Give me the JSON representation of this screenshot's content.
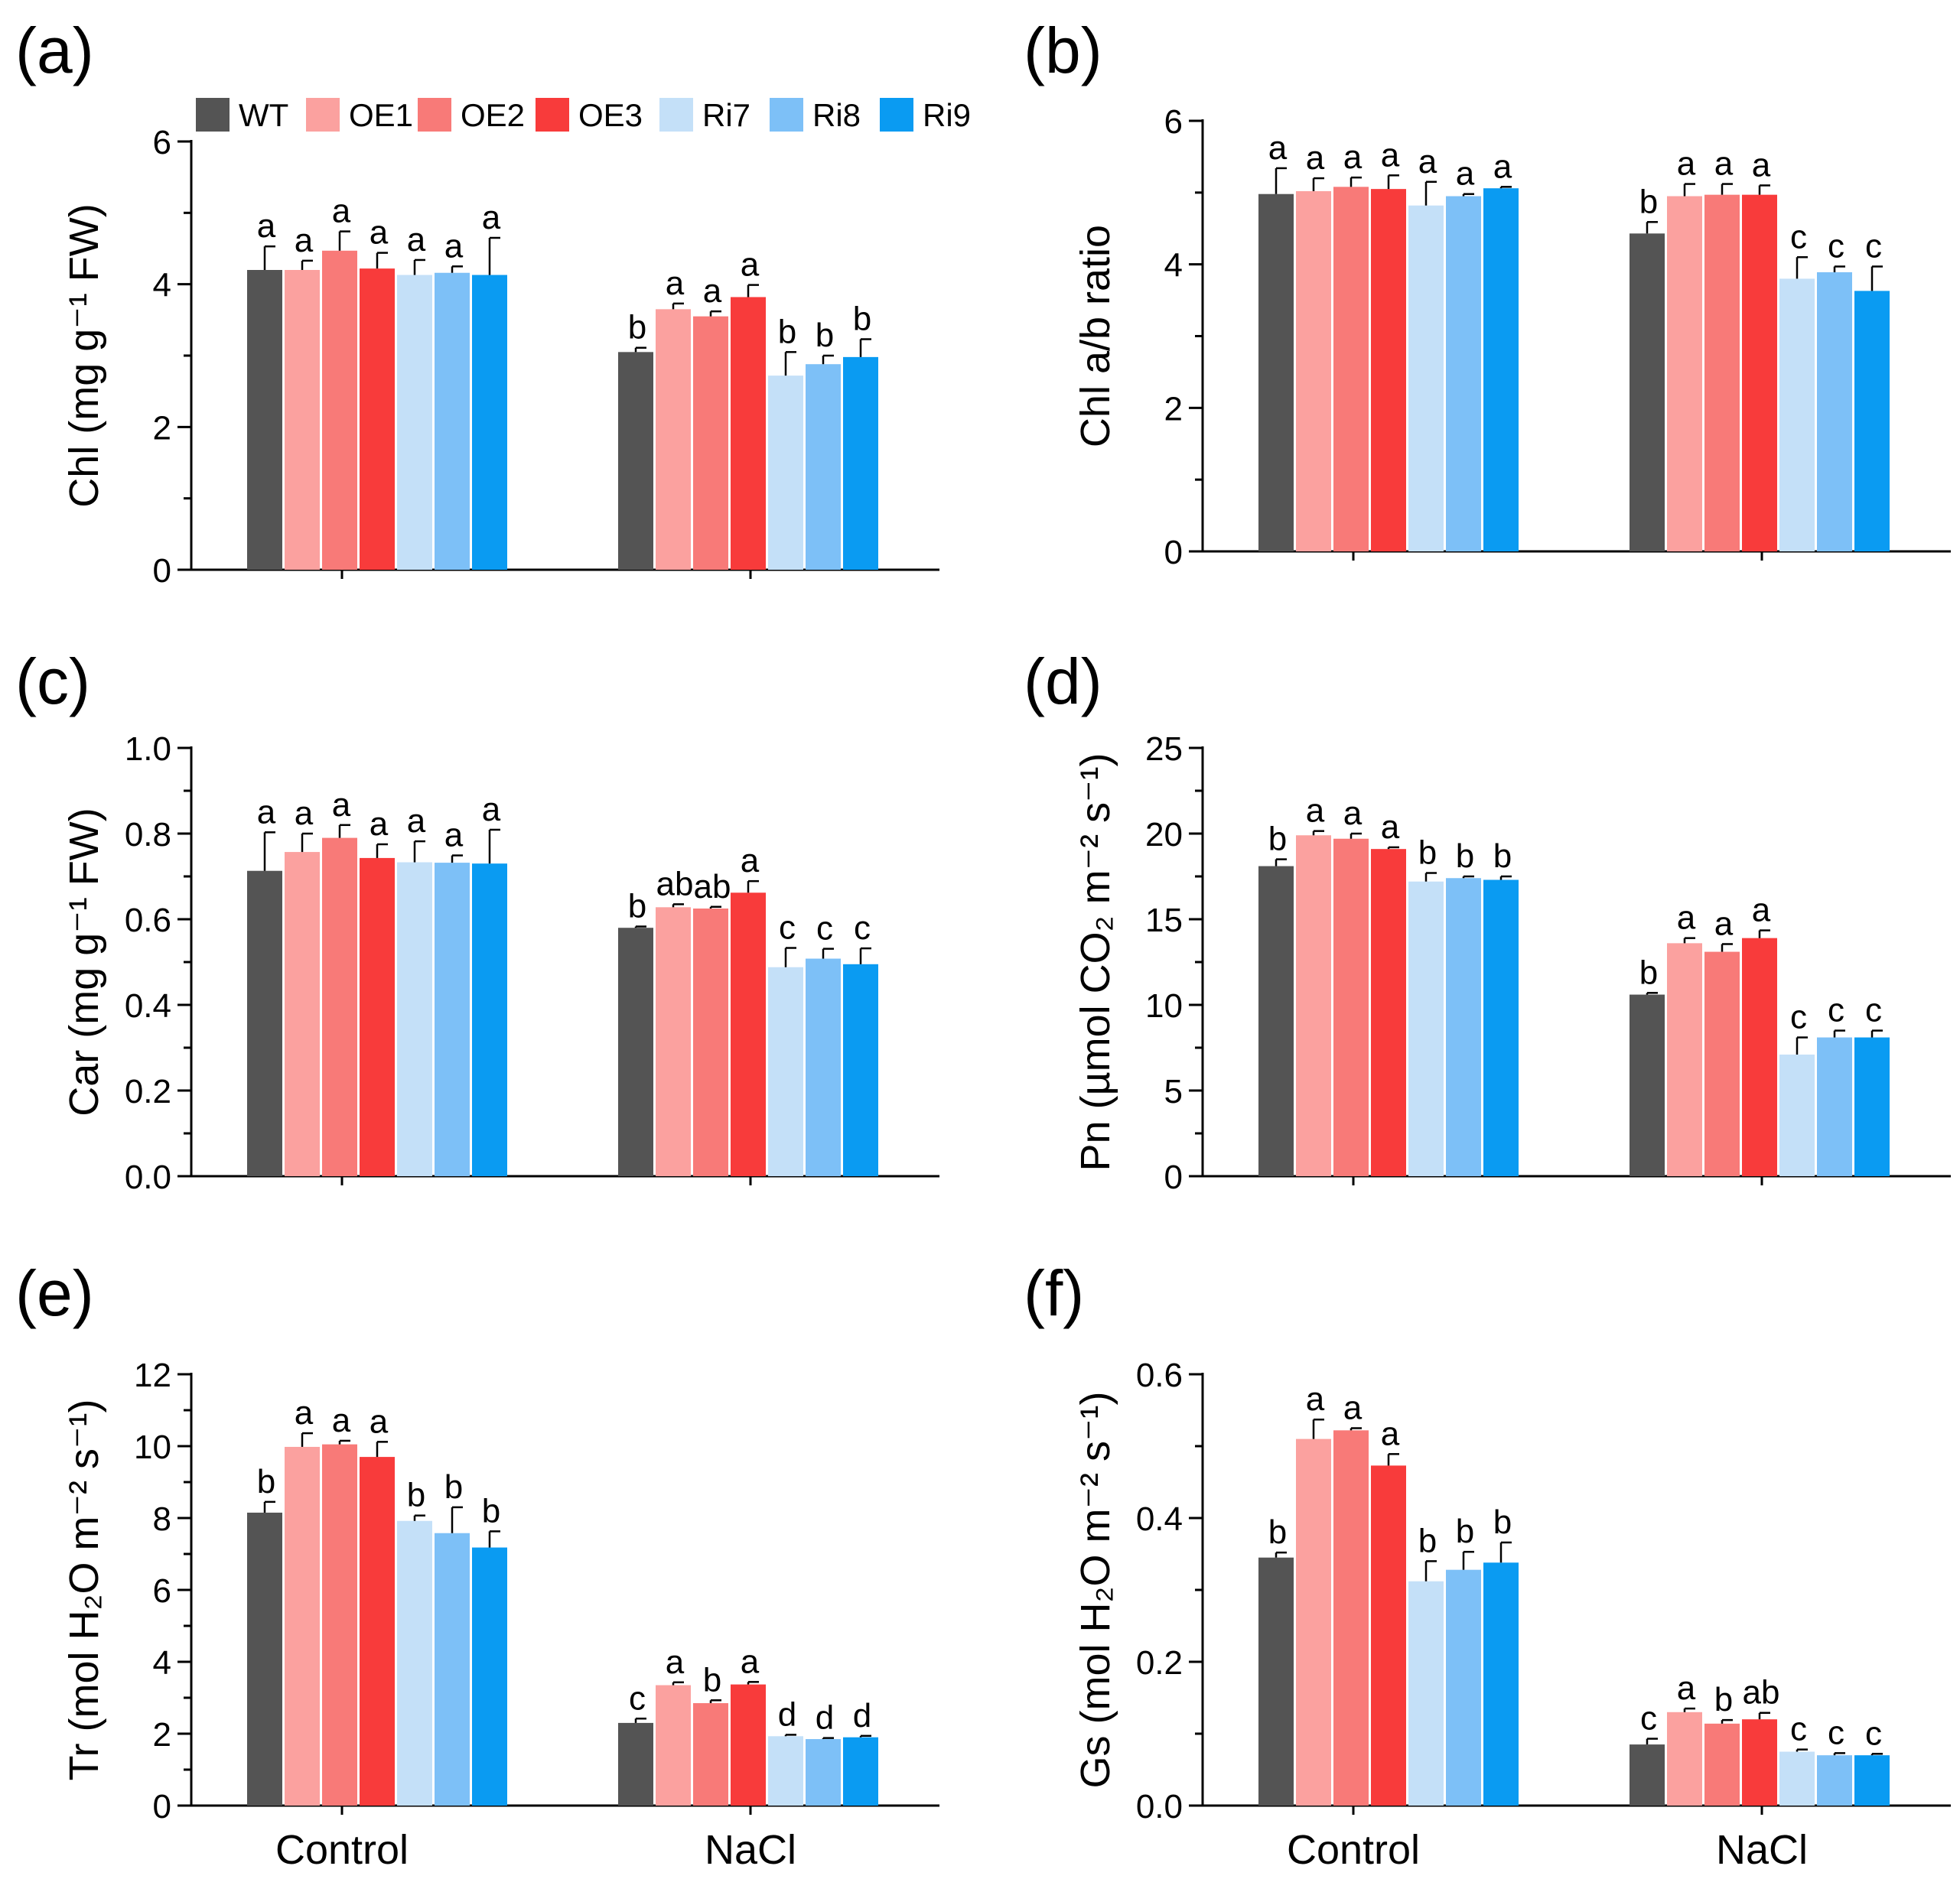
{
  "legend": {
    "entries": [
      {
        "name": "WT",
        "color": "#545454"
      },
      {
        "name": "OE1",
        "color": "#FBA19F"
      },
      {
        "name": "OE2",
        "color": "#F87A78"
      },
      {
        "name": "OE3",
        "color": "#F83B3B"
      },
      {
        "name": "Ri7",
        "color": "#C4E0F8"
      },
      {
        "name": "Ri8",
        "color": "#7DC0F7"
      },
      {
        "name": "Ri9",
        "color": "#0A9BF2"
      }
    ]
  },
  "chart_data": [
    {
      "id": "a",
      "panel_label": "(a)",
      "type": "bar",
      "ylabel": "Chl (mg g⁻¹ FW)",
      "ylim": [
        0,
        6
      ],
      "yticks": [
        0,
        2,
        4,
        6
      ],
      "ytick_labels": [
        "0",
        "2",
        "4",
        "6"
      ],
      "categories": [
        "Control",
        "NaCl"
      ],
      "show_xticklabels": false,
      "letter_font": "sans",
      "series": [
        {
          "name": "WT",
          "values": [
            4.2,
            3.05
          ],
          "errors": [
            0.33,
            0.06
          ],
          "letters": [
            "a",
            "b"
          ]
        },
        {
          "name": "OE1",
          "values": [
            4.2,
            3.65
          ],
          "errors": [
            0.13,
            0.08
          ],
          "letters": [
            "a",
            "a"
          ]
        },
        {
          "name": "OE2",
          "values": [
            4.47,
            3.55
          ],
          "errors": [
            0.27,
            0.07
          ],
          "letters": [
            "a",
            "a"
          ]
        },
        {
          "name": "OE3",
          "values": [
            4.22,
            3.82
          ],
          "errors": [
            0.22,
            0.17
          ],
          "letters": [
            "a",
            "a"
          ]
        },
        {
          "name": "Ri7",
          "values": [
            4.13,
            2.72
          ],
          "errors": [
            0.21,
            0.33
          ],
          "letters": [
            "a",
            "b"
          ]
        },
        {
          "name": "Ri8",
          "values": [
            4.16,
            2.88
          ],
          "errors": [
            0.09,
            0.12
          ],
          "letters": [
            "a",
            "b"
          ]
        },
        {
          "name": "Ri9",
          "values": [
            4.13,
            2.98
          ],
          "errors": [
            0.52,
            0.25
          ],
          "letters": [
            "a",
            "b"
          ]
        }
      ]
    },
    {
      "id": "b",
      "panel_label": "(b)",
      "type": "bar",
      "ylabel": "Chl a/b ratio",
      "ylim": [
        0,
        6
      ],
      "yticks": [
        0,
        2,
        4,
        6
      ],
      "ytick_labels": [
        "0",
        "2",
        "4",
        "6"
      ],
      "categories": [
        "Control",
        "NaCl"
      ],
      "show_xticklabels": false,
      "letter_font": "sans",
      "series": [
        {
          "name": "WT",
          "values": [
            4.98,
            4.43
          ],
          "errors": [
            0.36,
            0.16
          ],
          "letters": [
            "a",
            "b"
          ]
        },
        {
          "name": "OE1",
          "values": [
            5.02,
            4.95
          ],
          "errors": [
            0.18,
            0.17
          ],
          "letters": [
            "a",
            "a"
          ]
        },
        {
          "name": "OE2",
          "values": [
            5.08,
            4.97
          ],
          "errors": [
            0.13,
            0.15
          ],
          "letters": [
            "a",
            "a"
          ]
        },
        {
          "name": "OE3",
          "values": [
            5.05,
            4.97
          ],
          "errors": [
            0.19,
            0.13
          ],
          "letters": [
            "a",
            "a"
          ]
        },
        {
          "name": "Ri7",
          "values": [
            4.82,
            3.8
          ],
          "errors": [
            0.33,
            0.3
          ],
          "letters": [
            "a",
            "c"
          ]
        },
        {
          "name": "Ri8",
          "values": [
            4.95,
            3.89
          ],
          "errors": [
            0.03,
            0.08
          ],
          "letters": [
            "a",
            "c"
          ]
        },
        {
          "name": "Ri9",
          "values": [
            5.06,
            3.63
          ],
          "errors": [
            0.02,
            0.34
          ],
          "letters": [
            "a",
            "c"
          ]
        }
      ]
    },
    {
      "id": "c",
      "panel_label": "(c)",
      "type": "bar",
      "ylabel": "Car (mg g⁻¹ FW)",
      "ylim": [
        0,
        1.0
      ],
      "yticks": [
        0,
        0.2,
        0.4,
        0.6,
        0.8,
        1.0
      ],
      "ytick_labels": [
        "0.0",
        "0.2",
        "0.4",
        "0.6",
        "0.8",
        "1.0"
      ],
      "categories": [
        "Control",
        "NaCl"
      ],
      "show_xticklabels": false,
      "letter_font": "serif",
      "series": [
        {
          "name": "WT",
          "values": [
            0.713,
            0.58
          ],
          "errors": [
            0.09,
            0.003
          ],
          "letters": [
            "a",
            "b"
          ]
        },
        {
          "name": "OE1",
          "values": [
            0.757,
            0.628
          ],
          "errors": [
            0.043,
            0.007
          ],
          "letters": [
            "a",
            "ab"
          ]
        },
        {
          "name": "OE2",
          "values": [
            0.79,
            0.625
          ],
          "errors": [
            0.03,
            0.004
          ],
          "letters": [
            "a",
            "ab"
          ]
        },
        {
          "name": "OE3",
          "values": [
            0.743,
            0.662
          ],
          "errors": [
            0.032,
            0.027
          ],
          "letters": [
            "a",
            "a"
          ]
        },
        {
          "name": "Ri7",
          "values": [
            0.733,
            0.488
          ],
          "errors": [
            0.049,
            0.045
          ],
          "letters": [
            "a",
            "c"
          ]
        },
        {
          "name": "Ri8",
          "values": [
            0.732,
            0.508
          ],
          "errors": [
            0.017,
            0.023
          ],
          "letters": [
            "a",
            "c"
          ]
        },
        {
          "name": "Ri9",
          "values": [
            0.73,
            0.495
          ],
          "errors": [
            0.079,
            0.037
          ],
          "letters": [
            "a",
            "c"
          ]
        }
      ]
    },
    {
      "id": "d",
      "panel_label": "(d)",
      "type": "bar",
      "ylabel": "Pn (µmol CO₂ m⁻² s⁻¹)",
      "ylim": [
        0,
        25
      ],
      "yticks": [
        0,
        5,
        10,
        15,
        20,
        25
      ],
      "ytick_labels": [
        "0",
        "5",
        "10",
        "15",
        "20",
        "25"
      ],
      "categories": [
        "Control",
        "NaCl"
      ],
      "show_xticklabels": false,
      "letter_font": "sans",
      "series": [
        {
          "name": "WT",
          "values": [
            18.1,
            10.6
          ],
          "errors": [
            0.4,
            0.1
          ],
          "letters": [
            "b",
            "b"
          ]
        },
        {
          "name": "OE1",
          "values": [
            19.9,
            13.6
          ],
          "errors": [
            0.25,
            0.3
          ],
          "letters": [
            "a",
            "a"
          ]
        },
        {
          "name": "OE2",
          "values": [
            19.7,
            13.1
          ],
          "errors": [
            0.3,
            0.45
          ],
          "letters": [
            "a",
            "a"
          ]
        },
        {
          "name": "OE3",
          "values": [
            19.1,
            13.9
          ],
          "errors": [
            0.1,
            0.45
          ],
          "letters": [
            "a",
            "a"
          ]
        },
        {
          "name": "Ri7",
          "values": [
            17.2,
            7.1
          ],
          "errors": [
            0.5,
            1.0
          ],
          "letters": [
            "b",
            "c"
          ]
        },
        {
          "name": "Ri8",
          "values": [
            17.4,
            8.1
          ],
          "errors": [
            0.1,
            0.4
          ],
          "letters": [
            "b",
            "c"
          ]
        },
        {
          "name": "Ri9",
          "values": [
            17.3,
            8.1
          ],
          "errors": [
            0.2,
            0.4
          ],
          "letters": [
            "b",
            "c"
          ]
        }
      ]
    },
    {
      "id": "e",
      "panel_label": "(e)",
      "type": "bar",
      "ylabel": "Tr (mol H₂O m⁻² s⁻¹)",
      "ylim": [
        0,
        12
      ],
      "yticks": [
        0,
        2,
        4,
        6,
        8,
        10,
        12
      ],
      "ytick_labels": [
        "0",
        "2",
        "4",
        "6",
        "8",
        "10",
        "12"
      ],
      "categories": [
        "Control",
        "NaCl"
      ],
      "show_xticklabels": true,
      "letter_font": "sans",
      "series": [
        {
          "name": "WT",
          "values": [
            8.15,
            2.3
          ],
          "errors": [
            0.3,
            0.12
          ],
          "letters": [
            "b",
            "c"
          ]
        },
        {
          "name": "OE1",
          "values": [
            9.98,
            3.35
          ],
          "errors": [
            0.38,
            0.08
          ],
          "letters": [
            "a",
            "a"
          ]
        },
        {
          "name": "OE2",
          "values": [
            10.05,
            2.85
          ],
          "errors": [
            0.1,
            0.08
          ],
          "letters": [
            "a",
            "b"
          ]
        },
        {
          "name": "OE3",
          "values": [
            9.7,
            3.37
          ],
          "errors": [
            0.42,
            0.07
          ],
          "letters": [
            "a",
            "a"
          ]
        },
        {
          "name": "Ri7",
          "values": [
            7.92,
            1.93
          ],
          "errors": [
            0.15,
            0.04
          ],
          "letters": [
            "b",
            "d"
          ]
        },
        {
          "name": "Ri8",
          "values": [
            7.58,
            1.85
          ],
          "errors": [
            0.72,
            0.03
          ],
          "letters": [
            "b",
            "d"
          ]
        },
        {
          "name": "Ri9",
          "values": [
            7.18,
            1.9
          ],
          "errors": [
            0.45,
            0.04
          ],
          "letters": [
            "b",
            "d"
          ]
        }
      ]
    },
    {
      "id": "f",
      "panel_label": "(f)",
      "type": "bar",
      "ylabel": "Gs (mol H₂O m⁻² s⁻¹)",
      "ylim": [
        0,
        0.6
      ],
      "yticks": [
        0,
        0.2,
        0.4,
        0.6
      ],
      "ytick_labels": [
        "0.0",
        "0.2",
        "0.4",
        "0.6"
      ],
      "categories": [
        "Control",
        "NaCl"
      ],
      "show_xticklabels": true,
      "letter_font": "sans",
      "series": [
        {
          "name": "WT",
          "values": [
            0.345,
            0.085
          ],
          "errors": [
            0.007,
            0.008
          ],
          "letters": [
            "b",
            "c"
          ]
        },
        {
          "name": "OE1",
          "values": [
            0.51,
            0.13
          ],
          "errors": [
            0.027,
            0.005
          ],
          "letters": [
            "a",
            "a"
          ]
        },
        {
          "name": "OE2",
          "values": [
            0.522,
            0.114
          ],
          "errors": [
            0.003,
            0.005
          ],
          "letters": [
            "a",
            "b"
          ]
        },
        {
          "name": "OE3",
          "values": [
            0.473,
            0.12
          ],
          "errors": [
            0.016,
            0.009
          ],
          "letters": [
            "a",
            "ab"
          ]
        },
        {
          "name": "Ri7",
          "values": [
            0.312,
            0.075
          ],
          "errors": [
            0.028,
            0.003
          ],
          "letters": [
            "b",
            "c"
          ]
        },
        {
          "name": "Ri8",
          "values": [
            0.328,
            0.07
          ],
          "errors": [
            0.025,
            0.003
          ],
          "letters": [
            "b",
            "c"
          ]
        },
        {
          "name": "Ri9",
          "values": [
            0.338,
            0.07
          ],
          "errors": [
            0.028,
            0.002
          ],
          "letters": [
            "b",
            "c"
          ]
        }
      ]
    }
  ]
}
